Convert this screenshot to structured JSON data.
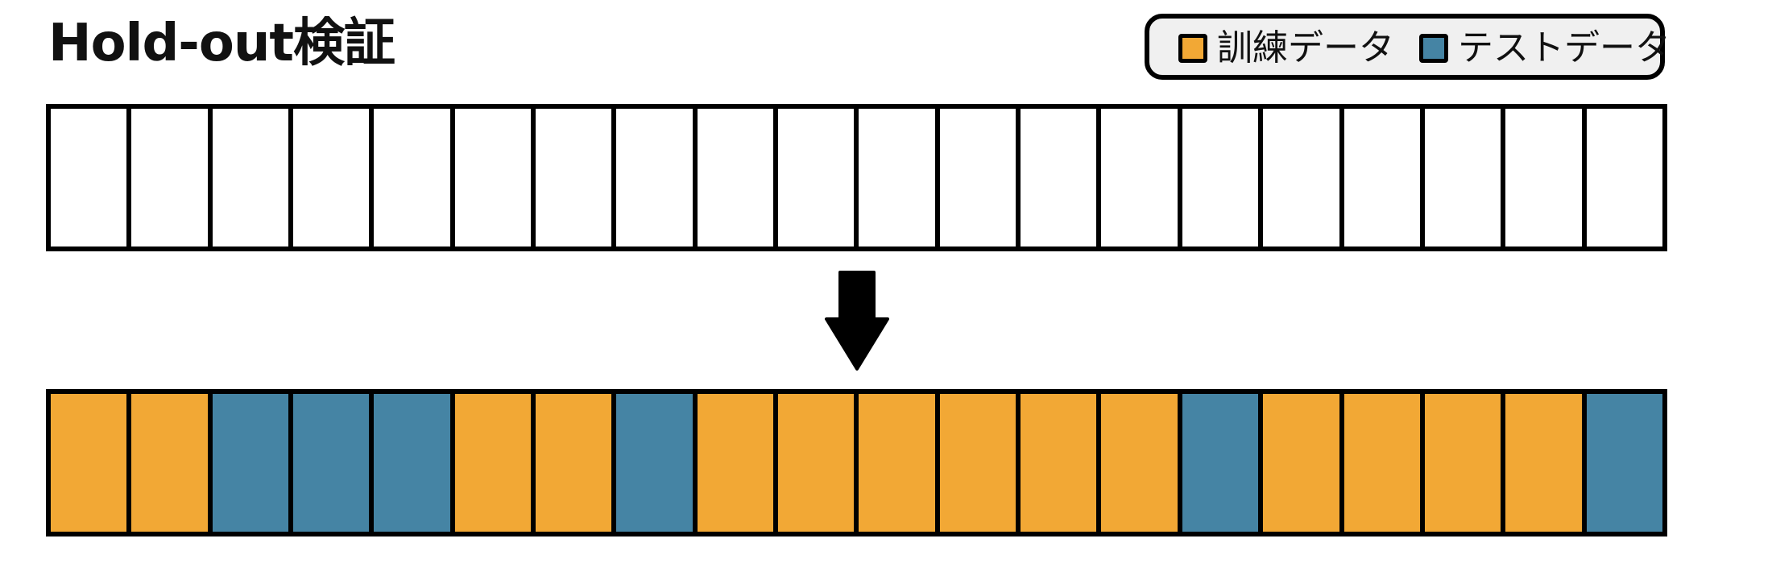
{
  "title": "Hold-out検証",
  "legend": {
    "train": {
      "label": "訓練データ",
      "color": "#f2a835"
    },
    "test": {
      "label": "テストデータ",
      "color": "#4584a4"
    }
  },
  "before_cells": [
    "empty",
    "empty",
    "empty",
    "empty",
    "empty",
    "empty",
    "empty",
    "empty",
    "empty",
    "empty",
    "empty",
    "empty",
    "empty",
    "empty",
    "empty",
    "empty",
    "empty",
    "empty",
    "empty",
    "empty"
  ],
  "after_cells": [
    "train",
    "train",
    "test",
    "test",
    "test",
    "train",
    "train",
    "test",
    "train",
    "train",
    "train",
    "train",
    "train",
    "train",
    "test",
    "train",
    "train",
    "train",
    "train",
    "test"
  ],
  "colors": {
    "empty": "#ffffff",
    "border": "#000000",
    "legend_bg": "#f0f0f0"
  },
  "arrow": {
    "icon": "down-arrow-icon"
  }
}
